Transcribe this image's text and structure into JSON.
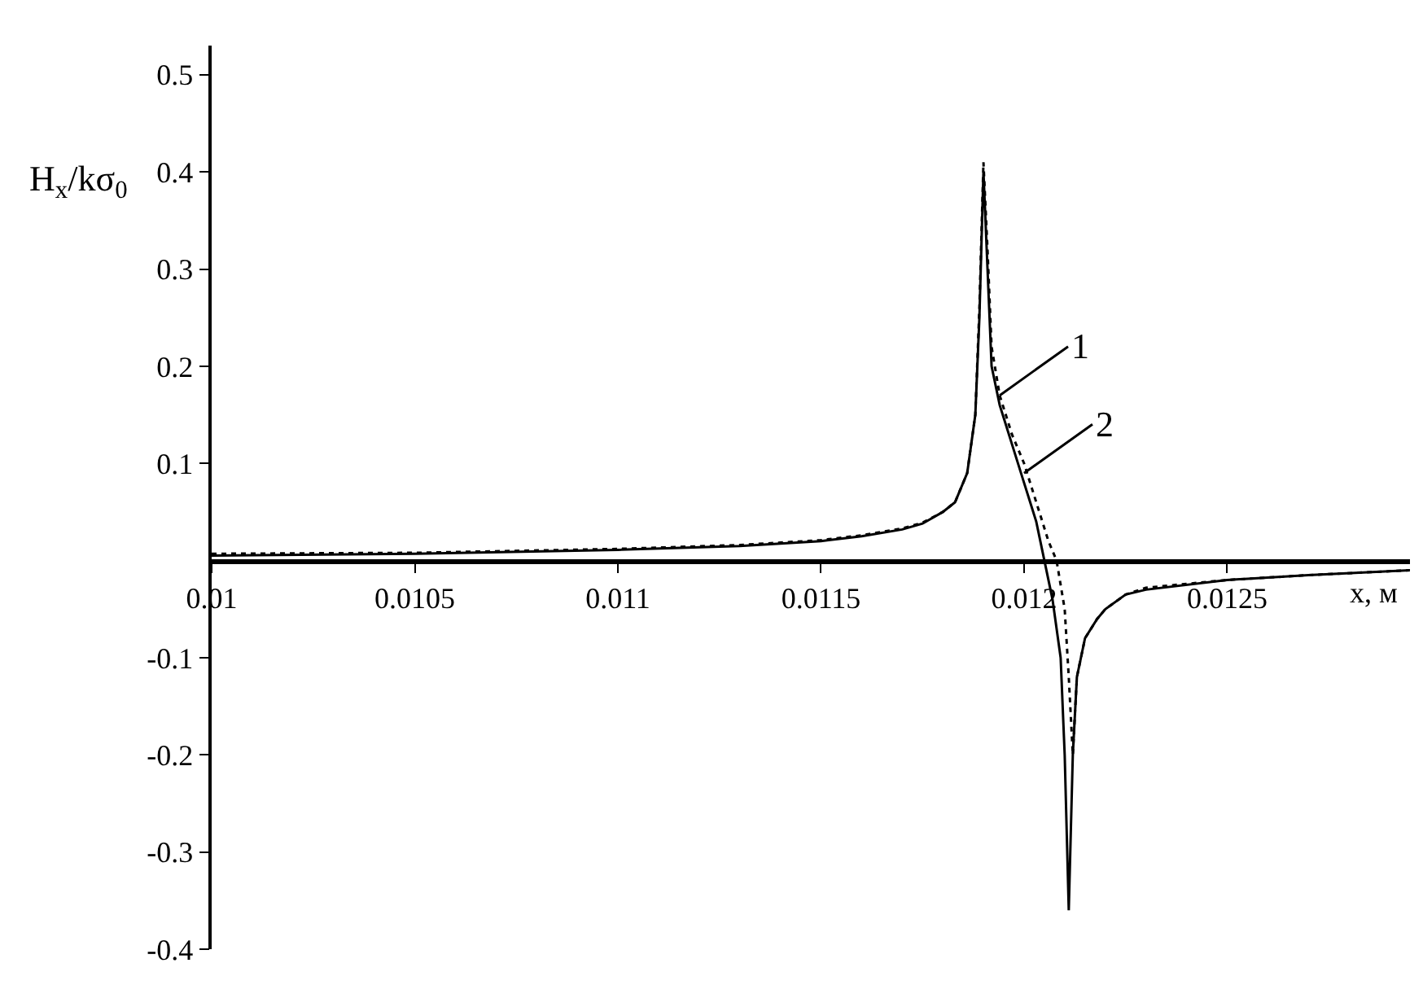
{
  "chart_data": {
    "type": "line",
    "xlabel": "x, м",
    "ylabel": "H$_{x}$/kσ$_{0}$",
    "xlim": [
      0.01,
      0.01295
    ],
    "ylim": [
      -0.4,
      0.53
    ],
    "xticks": [
      0.01,
      0.0105,
      0.011,
      0.0115,
      0.012,
      0.0125
    ],
    "yticks": [
      -0.4,
      -0.3,
      -0.2,
      -0.1,
      0.1,
      0.2,
      0.3,
      0.4,
      0.5
    ],
    "marker": "none",
    "series": [
      {
        "color": "#000000",
        "line_style": "solid",
        "x": [
          0.01,
          0.0105,
          0.011,
          0.0113,
          0.0115,
          0.0116,
          0.0117,
          0.01175,
          0.0118,
          0.01183,
          0.01186,
          0.01188,
          0.01189,
          0.0119,
          0.01191,
          0.01192,
          0.01194,
          0.01197,
          0.012,
          0.01203,
          0.01205,
          0.01207,
          0.01209,
          0.0121,
          0.01211,
          0.01212,
          0.01213,
          0.01215,
          0.01218,
          0.0122,
          0.01225,
          0.0123,
          0.0125,
          0.0127,
          0.01295
        ],
        "values": [
          0.005,
          0.007,
          0.011,
          0.015,
          0.02,
          0.025,
          0.032,
          0.038,
          0.05,
          0.06,
          0.09,
          0.15,
          0.25,
          0.4,
          0.3,
          0.2,
          0.16,
          0.12,
          0.08,
          0.04,
          0,
          -0.04,
          -0.1,
          -0.2,
          -0.36,
          -0.2,
          -0.12,
          -0.08,
          -0.06,
          -0.05,
          -0.035,
          -0.03,
          -0.02,
          -0.015,
          -0.01
        ]
      },
      {
        "color": "#000000",
        "line_style": "dotted",
        "x": [
          0.01,
          0.0105,
          0.011,
          0.0113,
          0.0115,
          0.0116,
          0.0117,
          0.01175,
          0.0118,
          0.01183,
          0.01186,
          0.01188,
          0.01189,
          0.0119,
          0.01191,
          0.01192,
          0.01194,
          0.01197,
          0.012,
          0.01203,
          0.01206,
          0.01208,
          0.0121,
          0.01211,
          0.01212,
          0.01213,
          0.01215,
          0.01218,
          0.0122,
          0.01225,
          0.0123,
          0.0125,
          0.0127,
          0.01295
        ],
        "values": [
          0.007,
          0.008,
          0.012,
          0.016,
          0.021,
          0.026,
          0.033,
          0.039,
          0.05,
          0.06,
          0.09,
          0.15,
          0.26,
          0.41,
          0.32,
          0.22,
          0.17,
          0.13,
          0.1,
          0.06,
          0.02,
          0,
          -0.05,
          -0.12,
          -0.2,
          -0.12,
          -0.08,
          -0.06,
          -0.05,
          -0.035,
          -0.028,
          -0.02,
          -0.015,
          -0.01
        ]
      }
    ],
    "annotations": [
      {
        "text": "1",
        "x": 0.01194,
        "y": 0.17
      },
      {
        "text": "2",
        "x": 0.012,
        "y": 0.09
      }
    ]
  }
}
